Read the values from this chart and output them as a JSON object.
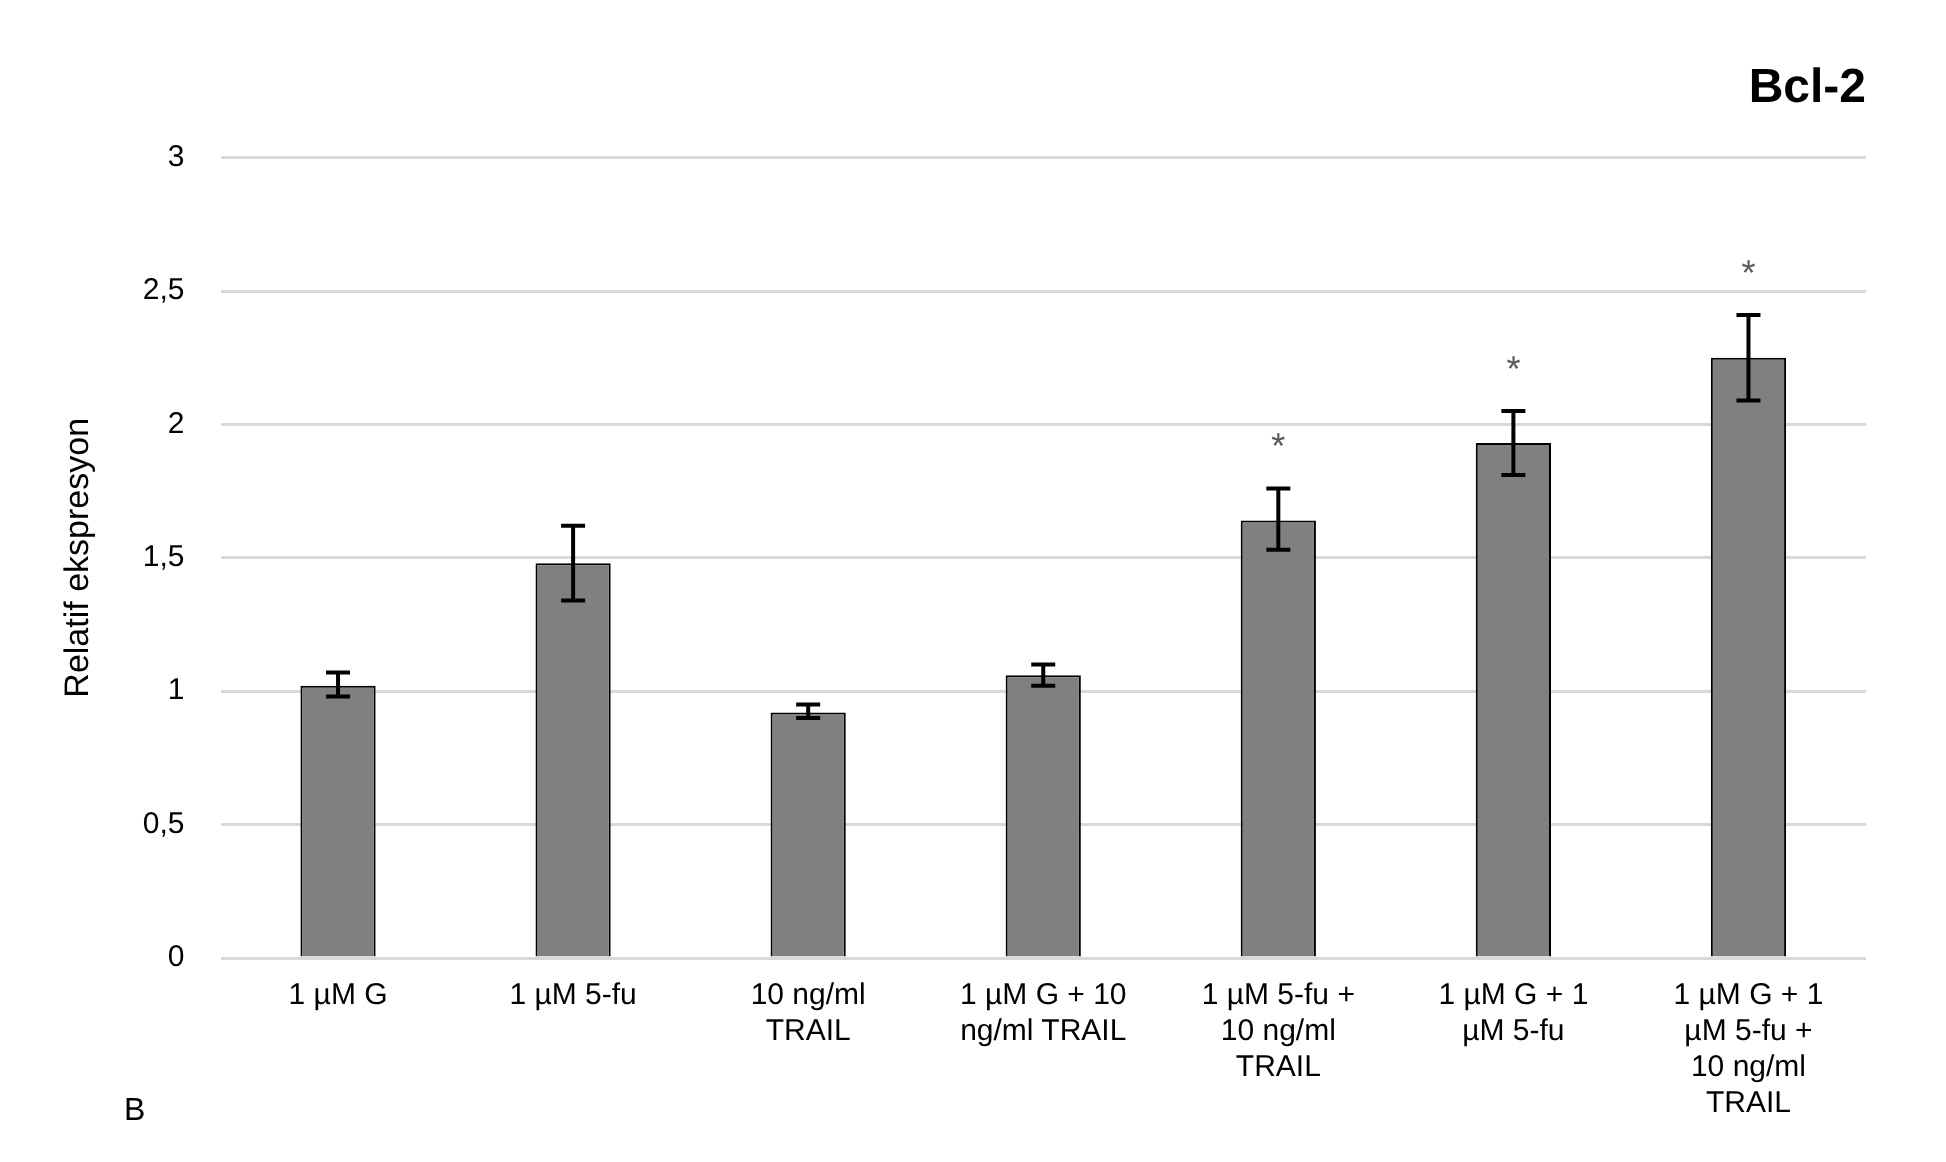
{
  "chart_data": {
    "type": "bar",
    "title": "Bcl-2",
    "ylabel": "Relatif ekspresyon",
    "categories": [
      "1 µM G",
      "1 µM 5-fu",
      "10 ng/ml TRAIL",
      "1 µM G + 10 ng/ml TRAIL",
      "1 µM 5-fu + 10 ng/ml TRAIL",
      "1 µM G + 1 µM 5-fu",
      "1 µM G + 1 µM 5-fu + 10 ng/ml TRAIL"
    ],
    "values": [
      1.02,
      1.48,
      0.92,
      1.06,
      1.64,
      1.93,
      2.25
    ],
    "errors": [
      [
        0.98,
        1.07
      ],
      [
        1.34,
        1.62
      ],
      [
        0.9,
        0.95
      ],
      [
        1.02,
        1.1
      ],
      [
        1.53,
        1.76
      ],
      [
        1.81,
        2.05
      ],
      [
        2.09,
        2.41
      ]
    ],
    "color": "#808080",
    "ylim": [
      0,
      3
    ],
    "yticks": [
      0,
      {
        "value": 0.5,
        "label": "0,5"
      },
      1,
      {
        "value": 1.5,
        "label": "1,5"
      },
      2,
      {
        "value": 2.5,
        "label": "2,5"
      },
      3
    ],
    "grid": "y",
    "legend": false,
    "annotations": [
      {
        "text": "*",
        "x": "1 µM 5-fu + 10 ng/ml TRAIL",
        "y": 1.64
      },
      {
        "text": "*",
        "x": "1 µM G + 1 µM 5-fu",
        "y": 1.93
      },
      {
        "text": "*",
        "x": "1 µM G + 1 µM 5-fu + 10 ng/ml TRAIL",
        "y": 2.25
      },
      "B"
    ]
  }
}
